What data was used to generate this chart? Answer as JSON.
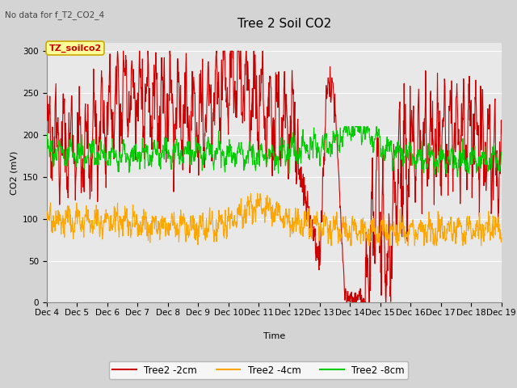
{
  "title": "Tree 2 Soil CO2",
  "no_data_label": "No data for f_T2_CO2_4",
  "tz_label": "TZ_soilco2",
  "ylabel": "CO2 (mV)",
  "xlabel": "Time",
  "ylim": [
    0,
    310
  ],
  "yticks": [
    0,
    50,
    100,
    150,
    200,
    250,
    300
  ],
  "x_labels": [
    "Dec 4",
    "Dec 5",
    "Dec 6",
    "Dec 7",
    "Dec 8",
    "Dec 9",
    "Dec 10",
    "Dec 11",
    "Dec 12",
    "Dec 13",
    "Dec 14",
    "Dec 15",
    "Dec 16",
    "Dec 17",
    "Dec 18",
    "Dec 19"
  ],
  "fig_bg_color": "#d4d4d4",
  "plot_bg_color": "#e8e8e8",
  "grid_color": "#ffffff",
  "line_colors": {
    "2cm": "#cc0000",
    "4cm": "#ffa500",
    "8cm": "#00cc00"
  },
  "legend_labels": [
    "Tree2 -2cm",
    "Tree2 -4cm",
    "Tree2 -8cm"
  ],
  "title_fontsize": 11,
  "label_fontsize": 8,
  "tick_fontsize": 7.5,
  "tz_box_facecolor": "#ffff99",
  "tz_box_edgecolor": "#ccaa00",
  "tz_text_color": "#cc0000"
}
